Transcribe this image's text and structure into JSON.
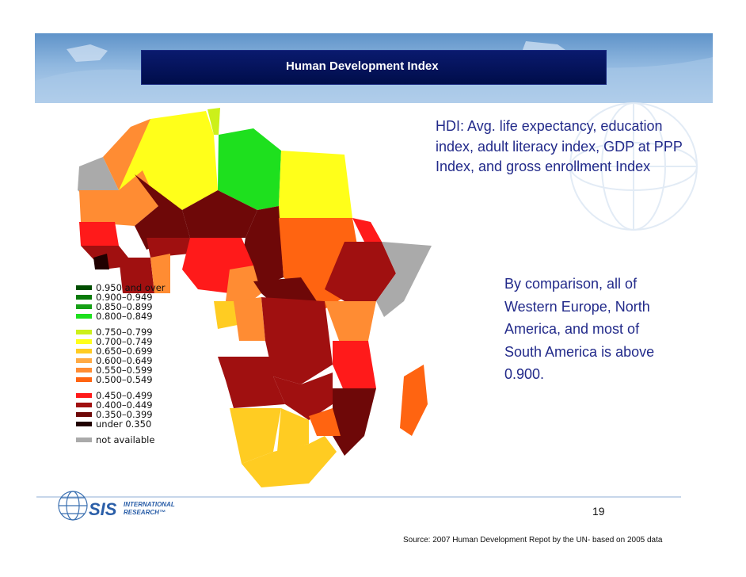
{
  "slide": {
    "title": "Human Development Index",
    "hdi_definition": "HDI: Avg. life expectancy, education index, adult literacy index, GDP at PPP Index, and gross enrollment Index",
    "comparison": "By comparison, all of Western Europe, North America, and most of South America is above 0.900.",
    "page_number": "19",
    "source": "Source: 2007 Human Development Repot by the UN- based on 2005 data",
    "logo_text": "SIS INTERNATIONAL RESEARCH"
  },
  "legend": {
    "groups": [
      [
        {
          "label": "0.950 and over",
          "color": "#004d00"
        },
        {
          "label": "0.900–0.949",
          "color": "#0a7a0a"
        },
        {
          "label": "0.850–0.899",
          "color": "#16a016"
        },
        {
          "label": "0.800–0.849",
          "color": "#1ee01e"
        }
      ],
      [
        {
          "label": "0.750–0.799",
          "color": "#ccf01a"
        },
        {
          "label": "0.700–0.749",
          "color": "#ffff1a"
        },
        {
          "label": "0.650–0.699",
          "color": "#ffcc22"
        },
        {
          "label": "0.600–0.649",
          "color": "#ffaa44"
        },
        {
          "label": "0.550–0.599",
          "color": "#ff8c33"
        },
        {
          "label": "0.500–0.549",
          "color": "#ff6411"
        }
      ],
      [
        {
          "label": "0.450–0.499",
          "color": "#ff1a1a"
        },
        {
          "label": "0.400–0.449",
          "color": "#a01010"
        },
        {
          "label": "0.350–0.399",
          "color": "#6e0808"
        },
        {
          "label": "under 0.350",
          "color": "#200000"
        }
      ],
      [
        {
          "label": "not available",
          "color": "#aaaaaa"
        }
      ]
    ]
  }
}
